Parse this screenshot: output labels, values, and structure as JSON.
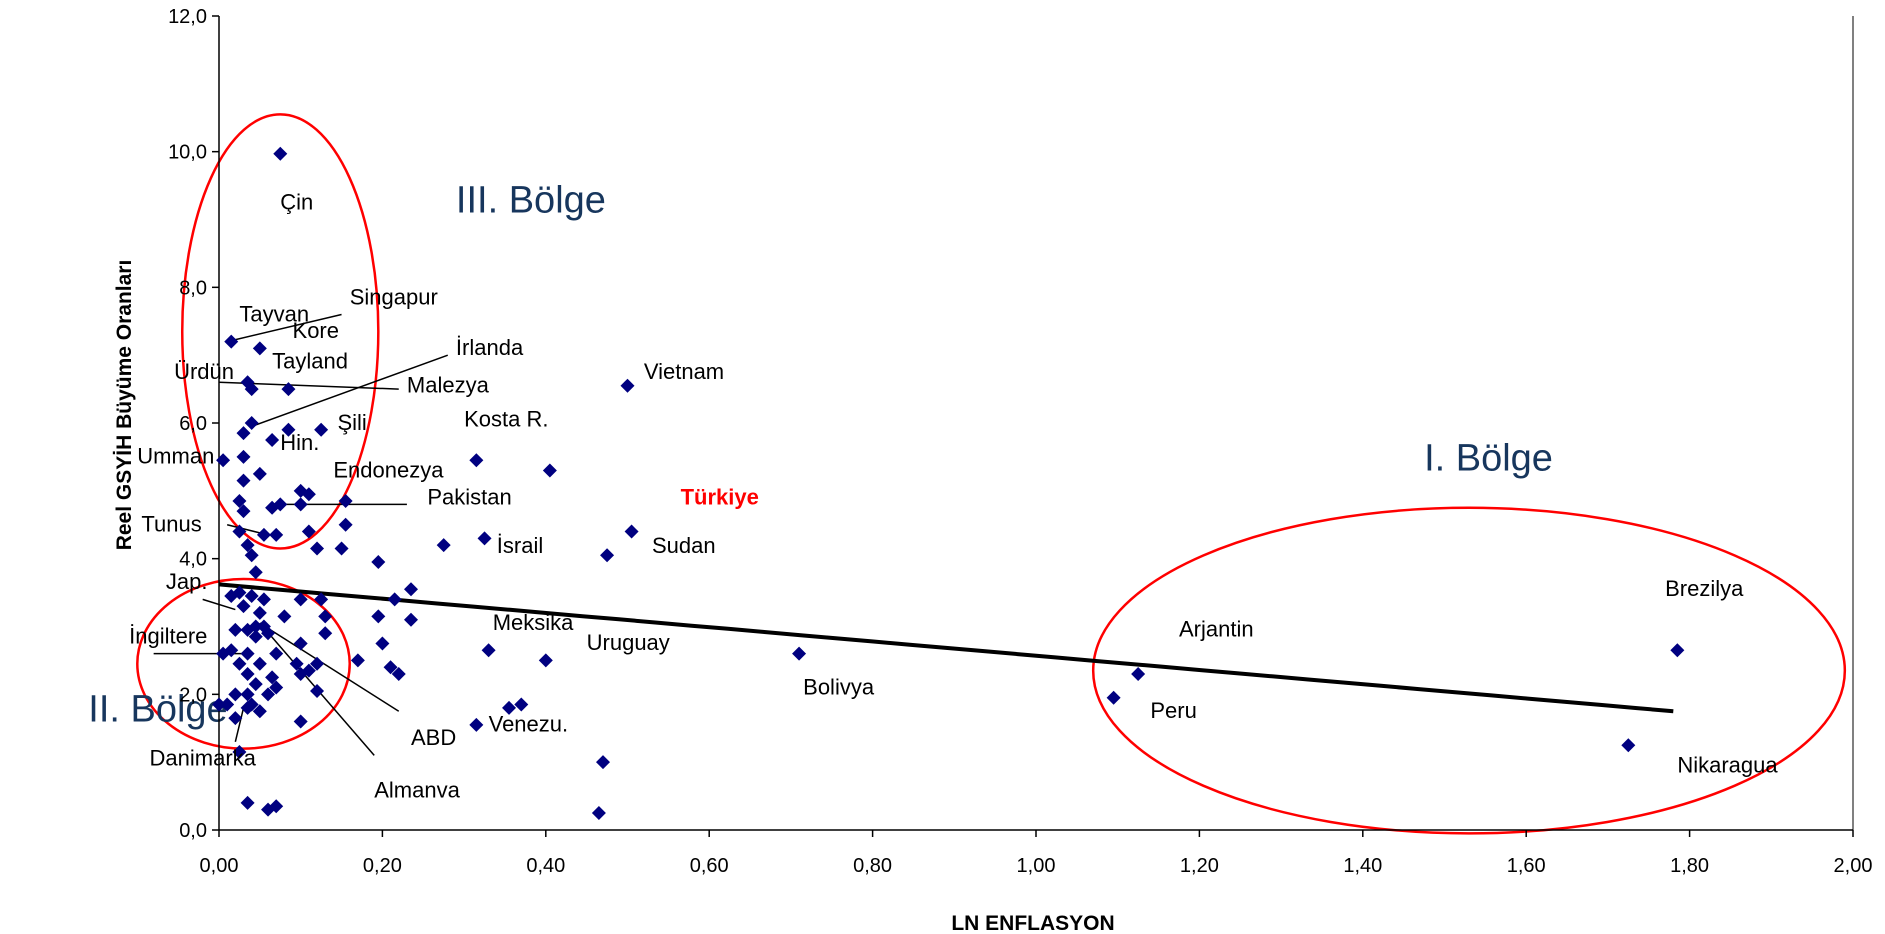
{
  "chart_data": {
    "type": "scatter",
    "xlabel": "LN ENFLASYON",
    "ylabel": "Reel GSYİH Büyüme Oranları",
    "xlim": [
      0,
      2
    ],
    "ylim": [
      0,
      12
    ],
    "x_ticks": [
      "0,00",
      "0,20",
      "0,40",
      "0,60",
      "0,80",
      "1,00",
      "1,20",
      "1,40",
      "1,60",
      "1,80",
      "2,00"
    ],
    "y_ticks": [
      "0,0",
      "2,0",
      "4,0",
      "6,0",
      "8,0",
      "10,0",
      "12,0"
    ],
    "grid": false,
    "marker_color": "#000080",
    "trendline": {
      "x": [
        0,
        1.78
      ],
      "y": [
        3.62,
        1.75
      ],
      "color": "#000000"
    },
    "points": [
      [
        0.075,
        9.97
      ],
      [
        0.015,
        7.2
      ],
      [
        0.05,
        7.1
      ],
      [
        0.035,
        6.6
      ],
      [
        0.04,
        6.5
      ],
      [
        0.085,
        6.5
      ],
      [
        0.5,
        6.55
      ],
      [
        0.04,
        6.0
      ],
      [
        0.03,
        5.85
      ],
      [
        0.085,
        5.9
      ],
      [
        0.125,
        5.9
      ],
      [
        0.065,
        5.75
      ],
      [
        0.005,
        5.45
      ],
      [
        0.03,
        5.5
      ],
      [
        0.315,
        5.45
      ],
      [
        0.405,
        5.3
      ],
      [
        0.05,
        5.25
      ],
      [
        0.03,
        5.15
      ],
      [
        0.1,
        5.0
      ],
      [
        0.11,
        4.95
      ],
      [
        0.025,
        4.85
      ],
      [
        0.155,
        4.85
      ],
      [
        0.065,
        4.75
      ],
      [
        0.075,
        4.8
      ],
      [
        0.1,
        4.8
      ],
      [
        0.03,
        4.7
      ],
      [
        0.155,
        4.5
      ],
      [
        0.11,
        4.4
      ],
      [
        0.025,
        4.4
      ],
      [
        0.055,
        4.35
      ],
      [
        0.07,
        4.35
      ],
      [
        0.325,
        4.3
      ],
      [
        0.505,
        4.4
      ],
      [
        0.035,
        4.2
      ],
      [
        0.12,
        4.15
      ],
      [
        0.15,
        4.15
      ],
      [
        0.275,
        4.2
      ],
      [
        0.475,
        4.05
      ],
      [
        0.04,
        4.05
      ],
      [
        0.195,
        3.95
      ],
      [
        0.045,
        3.8
      ],
      [
        0.235,
        3.55
      ],
      [
        0.025,
        3.5
      ],
      [
        0.04,
        3.45
      ],
      [
        0.055,
        3.4
      ],
      [
        0.1,
        3.4
      ],
      [
        0.125,
        3.4
      ],
      [
        0.215,
        3.4
      ],
      [
        0.015,
        3.45
      ],
      [
        0.03,
        3.3
      ],
      [
        0.05,
        3.2
      ],
      [
        0.08,
        3.15
      ],
      [
        0.13,
        3.15
      ],
      [
        0.195,
        3.15
      ],
      [
        0.235,
        3.1
      ],
      [
        0.045,
        3.0
      ],
      [
        0.055,
        3.0
      ],
      [
        0.02,
        2.95
      ],
      [
        0.035,
        2.95
      ],
      [
        0.06,
        2.9
      ],
      [
        0.13,
        2.9
      ],
      [
        0.045,
        2.85
      ],
      [
        0.1,
        2.75
      ],
      [
        0.2,
        2.75
      ],
      [
        0.33,
        2.65
      ],
      [
        0.71,
        2.6
      ],
      [
        0.005,
        2.6
      ],
      [
        0.015,
        2.65
      ],
      [
        0.035,
        2.6
      ],
      [
        0.07,
        2.6
      ],
      [
        0.17,
        2.5
      ],
      [
        0.4,
        2.5
      ],
      [
        0.025,
        2.45
      ],
      [
        0.05,
        2.45
      ],
      [
        0.095,
        2.45
      ],
      [
        0.12,
        2.45
      ],
      [
        0.21,
        2.4
      ],
      [
        0.22,
        2.3
      ],
      [
        0.035,
        2.3
      ],
      [
        0.065,
        2.25
      ],
      [
        0.1,
        2.3
      ],
      [
        0.11,
        2.35
      ],
      [
        0.045,
        2.15
      ],
      [
        0.07,
        2.1
      ],
      [
        1.125,
        2.3
      ],
      [
        0.02,
        2.0
      ],
      [
        0.035,
        2.0
      ],
      [
        0.06,
        2.0
      ],
      [
        0.12,
        2.05
      ],
      [
        0.01,
        1.85
      ],
      [
        0.04,
        1.85
      ],
      [
        0.035,
        1.8
      ],
      [
        0.05,
        1.75
      ],
      [
        0.355,
        1.8
      ],
      [
        0.37,
        1.85
      ],
      [
        1.095,
        1.95
      ],
      [
        1.785,
        2.65
      ],
      [
        0.02,
        1.65
      ],
      [
        0.1,
        1.6
      ],
      [
        0.315,
        1.55
      ],
      [
        0.0,
        1.85
      ],
      [
        1.725,
        1.25
      ],
      [
        0.025,
        1.15
      ],
      [
        0.47,
        1.0
      ],
      [
        0.035,
        0.4
      ],
      [
        0.06,
        0.3
      ],
      [
        0.07,
        0.35
      ],
      [
        0.465,
        0.25
      ]
    ],
    "country_labels": [
      {
        "text": "Çin",
        "x": 0.075,
        "y": 9.15
      },
      {
        "text": "Tayvan",
        "x": 0.025,
        "y": 7.5
      },
      {
        "text": "Singapur",
        "x": 0.16,
        "y": 7.75
      },
      {
        "text": "Kore",
        "x": 0.09,
        "y": 7.25
      },
      {
        "text": "İrlanda",
        "x": 0.29,
        "y": 7.0
      },
      {
        "text": "Tayland",
        "x": 0.065,
        "y": 6.8
      },
      {
        "text": "Ürdün",
        "x": -0.055,
        "y": 6.65
      },
      {
        "text": "Malezya",
        "x": 0.23,
        "y": 6.45
      },
      {
        "text": "Vietnam",
        "x": 0.52,
        "y": 6.65
      },
      {
        "text": "Kosta R.",
        "x": 0.3,
        "y": 5.95
      },
      {
        "text": "Şili",
        "x": 0.145,
        "y": 5.9
      },
      {
        "text": "Hin.",
        "x": 0.075,
        "y": 5.6
      },
      {
        "text": "Umman",
        "x": -0.1,
        "y": 5.4
      },
      {
        "text": "Endonezya",
        "x": 0.14,
        "y": 5.2
      },
      {
        "text": "Pakistan",
        "x": 0.255,
        "y": 4.8
      },
      {
        "text": "Tunus",
        "x": -0.095,
        "y": 4.4
      },
      {
        "text": "İsrail",
        "x": 0.34,
        "y": 4.08
      },
      {
        "text": "Sudan",
        "x": 0.53,
        "y": 4.08
      },
      {
        "text": "Jap.",
        "x": -0.065,
        "y": 3.55
      },
      {
        "text": "Meksika",
        "x": 0.335,
        "y": 2.95
      },
      {
        "text": "Uruguay",
        "x": 0.45,
        "y": 2.65
      },
      {
        "text": "Bolivya",
        "x": 0.715,
        "y": 2.0
      },
      {
        "text": "İngiltere",
        "x": -0.11,
        "y": 2.75
      },
      {
        "text": "ABD",
        "x": 0.235,
        "y": 1.25
      },
      {
        "text": "Venezu.",
        "x": 0.33,
        "y": 1.45
      },
      {
        "text": "Danimarka",
        "x": -0.085,
        "y": 0.95
      },
      {
        "text": "Almanva",
        "x": 0.19,
        "y": 0.48
      },
      {
        "text": "Arjantin",
        "x": 1.175,
        "y": 2.85
      },
      {
        "text": "Peru",
        "x": 1.14,
        "y": 1.65
      },
      {
        "text": "Brezilya",
        "x": 1.77,
        "y": 3.45
      },
      {
        "text": "Nikaragua",
        "x": 1.785,
        "y": 0.85
      }
    ],
    "highlight_label": {
      "text": "Türkiye",
      "x": 0.565,
      "y": 4.8,
      "color": "#ff0000"
    },
    "regions": [
      {
        "label": "III. Bölge",
        "label_x": 0.29,
        "label_y": 9.1,
        "cx": 0.075,
        "cy": 7.35,
        "rx_data": 0.12,
        "ry_data": 3.2
      },
      {
        "label": "II. Bölge",
        "label_x": -0.16,
        "label_y": 1.6,
        "cx": 0.03,
        "cy": 2.45,
        "ry_data": 1.25,
        "rx_data": 0.13
      },
      {
        "label": "I. Bölge",
        "label_x": 1.475,
        "label_y": 5.3,
        "cx": 1.53,
        "cy": 2.35,
        "rx_data": 0.46,
        "ry_data": 2.4
      }
    ],
    "region_color": "#ff0000",
    "connectors": [
      {
        "from": [
          0.15,
          7.6
        ],
        "to": [
          0.01,
          7.2
        ]
      },
      {
        "from": [
          0.28,
          7.0
        ],
        "to": [
          0.04,
          5.95
        ]
      },
      {
        "from": [
          0.22,
          6.5
        ],
        "to": [
          0.0,
          6.6
        ]
      },
      {
        "from": [
          0.23,
          4.8
        ],
        "to": [
          0.08,
          4.8
        ]
      },
      {
        "from": [
          0.01,
          4.5
        ],
        "to": [
          0.06,
          4.35
        ]
      },
      {
        "from": [
          -0.02,
          3.4
        ],
        "to": [
          0.02,
          3.25
        ]
      },
      {
        "from": [
          -0.08,
          2.6
        ],
        "to": [
          0.03,
          2.6
        ]
      },
      {
        "from": [
          0.22,
          1.75
        ],
        "to": [
          0.05,
          3.05
        ]
      },
      {
        "from": [
          0.19,
          1.1
        ],
        "to": [
          0.05,
          3.05
        ]
      },
      {
        "from": [
          0.02,
          1.3
        ],
        "to": [
          0.03,
          1.8
        ]
      }
    ]
  }
}
